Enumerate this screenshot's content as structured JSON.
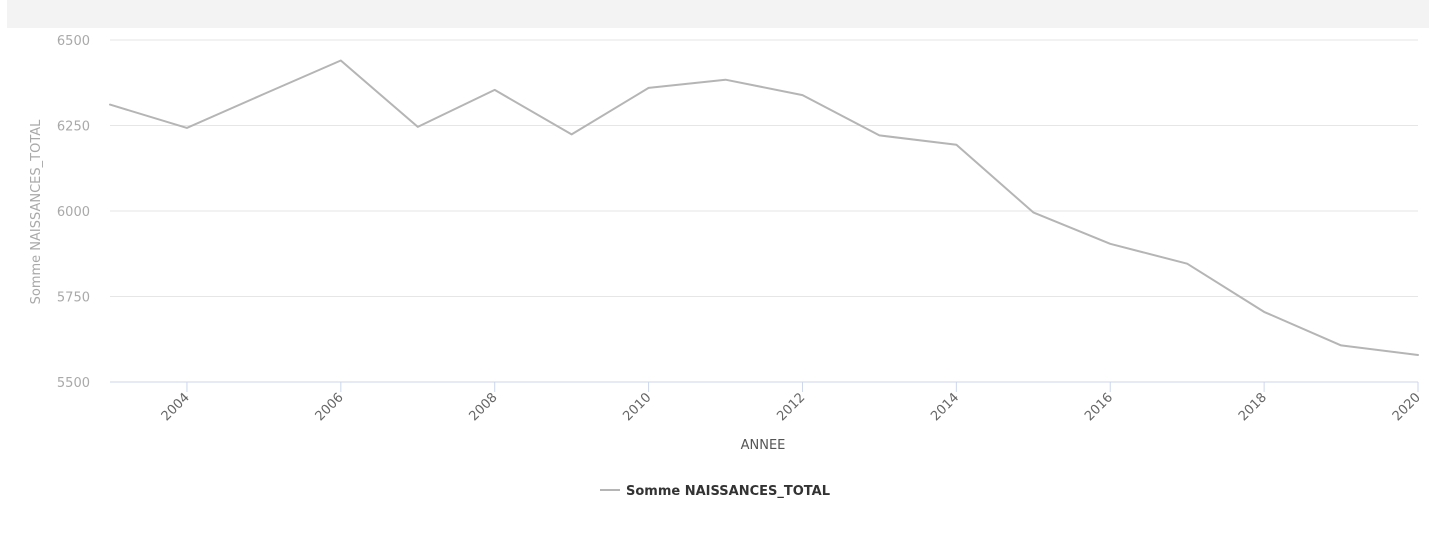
{
  "chart_data": {
    "type": "line",
    "xlabel": "ANNEE",
    "ylabel": "Somme NAISSANCES_TOTAL",
    "xlim": [
      2003,
      2020
    ],
    "ylim": [
      5500,
      6500
    ],
    "x_ticks": [
      "2004",
      "2006",
      "2008",
      "2010",
      "2012",
      "2014",
      "2016",
      "2018",
      "2020"
    ],
    "y_ticks": [
      "5500",
      "5750",
      "6000",
      "6250",
      "6500"
    ],
    "grid": true,
    "legend_position": "bottom-center",
    "series": [
      {
        "name": "Somme NAISSANCES_TOTAL",
        "color": "#b5b5b5",
        "x": [
          2003,
          2004,
          2005,
          2006,
          2007,
          2008,
          2009,
          2010,
          2011,
          2012,
          2013,
          2014,
          2015,
          2016,
          2017,
          2018,
          2019,
          2020
        ],
        "values": [
          6311,
          6243,
          6342,
          6440,
          6246,
          6354,
          6224,
          6360,
          6384,
          6339,
          6221,
          6194,
          5996,
          5904,
          5846,
          5705,
          5607,
          5579
        ]
      }
    ]
  }
}
